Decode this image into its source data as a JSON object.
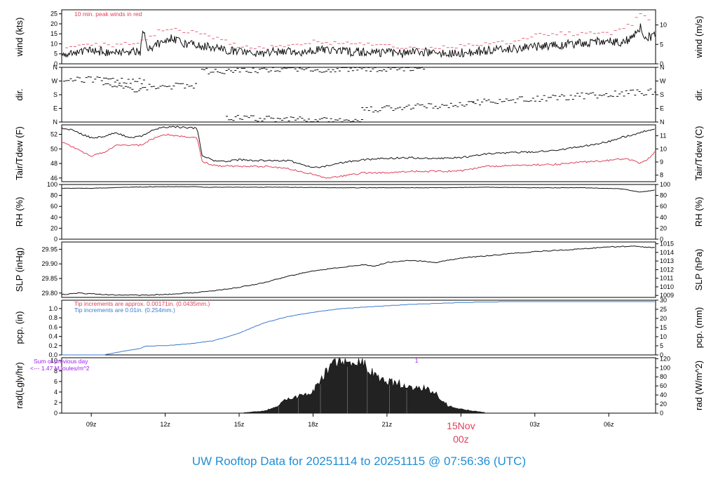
{
  "title": "UW Rooftop Data for 20251114  to  20251115 @ 07:56:36  (UTC)",
  "colors": {
    "black": "#111111",
    "red": "#e0405a",
    "blue": "#3a7ad0",
    "purple": "#a020f0",
    "title": "#1f8fd6"
  },
  "x_axis": {
    "range_hours": [
      7.8,
      31.9
    ],
    "ticks": [
      {
        "h": 9,
        "label": "09z"
      },
      {
        "h": 12,
        "label": "12z"
      },
      {
        "h": 15,
        "label": "15z"
      },
      {
        "h": 18,
        "label": "18z"
      },
      {
        "h": 21,
        "label": "21z"
      },
      {
        "h": 24,
        "label": ""
      },
      {
        "h": 27,
        "label": "03z"
      },
      {
        "h": 30,
        "label": "06z"
      }
    ],
    "date_label": "15Nov",
    "date_hour": "00z"
  },
  "chart_data": [
    {
      "type": "line",
      "id": "wind",
      "ylabel": "wind (kts)",
      "ylabel_right": "wind (m/s)",
      "ylim": [
        0,
        27
      ],
      "ticks_left": [
        "0",
        "5",
        "10",
        "15",
        "20",
        "25"
      ],
      "ticks_right": [
        {
          "v": 0,
          "label": "0"
        },
        {
          "v": 9.72,
          "label": "5"
        },
        {
          "v": 19.44,
          "label": "10"
        }
      ],
      "annotation": "10 min. peak winds in red",
      "series": [
        {
          "color": "black",
          "x": [
            7.8,
            8.5,
            9.0,
            9.5,
            10.0,
            10.5,
            11.0,
            11.1,
            11.3,
            11.8,
            12.3,
            12.8,
            13.5,
            14.5,
            15.5,
            16.5,
            17.5,
            18.5,
            19.5,
            20.5,
            21.5,
            22.5,
            23.5,
            24.5,
            25.5,
            26.5,
            27.5,
            28.5,
            29.5,
            30.5,
            31.0,
            31.3,
            31.5,
            31.9
          ],
          "y": [
            5,
            6,
            7,
            6,
            6,
            6,
            6,
            18,
            8,
            10,
            13,
            10,
            9,
            7,
            5,
            6,
            6,
            7,
            6,
            6,
            5,
            6,
            5,
            6,
            7,
            8,
            9,
            10,
            11,
            11,
            13,
            19,
            13,
            14
          ]
        },
        {
          "color": "red",
          "x": [
            8.0,
            9.0,
            10.0,
            11.0,
            12.0,
            13.0,
            14.0,
            15.0,
            16.0,
            17.0,
            18.0,
            19.0,
            20.0,
            21.0,
            22.0,
            23.0,
            24.0,
            25.0,
            26.0,
            27.0,
            28.0,
            29.0,
            30.0,
            31.0,
            31.3,
            31.7
          ],
          "y": [
            9,
            10,
            9,
            11,
            18,
            16,
            13,
            9,
            8,
            9,
            11,
            10,
            10,
            9,
            8,
            8,
            9,
            10,
            11,
            14,
            15,
            15,
            15,
            20,
            26,
            22
          ]
        }
      ]
    },
    {
      "type": "scatter",
      "id": "dir",
      "ylabel": "dir.",
      "ylabel_right": "dir.",
      "ylim": [
        0,
        360
      ],
      "ticks_left": [
        "N",
        "E",
        "S",
        "W",
        "N"
      ],
      "ticks_right": [
        "N",
        "E",
        "S",
        "W",
        "N"
      ],
      "segments": [
        {
          "x": [
            7.9,
            11.2
          ],
          "y": [
            285,
            270
          ]
        },
        {
          "x": [
            9.5,
            11.0
          ],
          "y": [
            240,
            200
          ]
        },
        {
          "x": [
            11.0,
            13.3
          ],
          "y": [
            230,
            240
          ]
        },
        {
          "x": [
            13.5,
            22.5
          ],
          "y": [
            335,
            355
          ]
        },
        {
          "x": [
            14.5,
            20.0
          ],
          "y": [
            30,
            5
          ]
        },
        {
          "x": [
            20.0,
            24.5
          ],
          "y": [
            80,
            120
          ]
        },
        {
          "x": [
            24.5,
            31.9
          ],
          "y": [
            130,
            200
          ]
        }
      ]
    },
    {
      "type": "line",
      "id": "temp",
      "ylabel": "Tair/Tdew (F)",
      "ylabel_right": "Tair/Tdew (C)",
      "ylim": [
        45.5,
        53.3
      ],
      "ticks_left": [
        "46",
        "48",
        "50",
        "52"
      ],
      "ticks_right": [
        {
          "v": 46.4,
          "label": "8"
        },
        {
          "v": 48.2,
          "label": "9"
        },
        {
          "v": 50.0,
          "label": "10"
        },
        {
          "v": 51.8,
          "label": "11"
        }
      ],
      "series": [
        {
          "name": "Tair",
          "color": "black",
          "x": [
            7.8,
            8.2,
            9.0,
            9.5,
            10.0,
            10.5,
            11.0,
            11.5,
            12.0,
            12.5,
            13.0,
            13.3,
            13.5,
            14.0,
            14.5,
            15.0,
            16.0,
            17.0,
            18.0,
            18.5,
            19.0,
            20.0,
            21.0,
            22.0,
            23.0,
            24.0,
            25.0,
            26.0,
            27.0,
            28.0,
            29.0,
            30.0,
            30.5,
            31.0,
            31.5,
            31.9
          ],
          "y": [
            52.9,
            52.6,
            51.5,
            51.7,
            52.2,
            51.6,
            51.7,
            52.6,
            53.0,
            53.0,
            52.9,
            52.8,
            49.0,
            48.4,
            48.3,
            48.5,
            48.4,
            48.4,
            47.4,
            47.6,
            48.0,
            48.5,
            48.7,
            48.8,
            48.7,
            48.8,
            49.3,
            49.5,
            49.6,
            49.9,
            50.4,
            51.0,
            51.6,
            51.9,
            52.5,
            52.8
          ]
        },
        {
          "name": "Tdew",
          "color": "red",
          "x": [
            7.8,
            8.5,
            9.0,
            9.5,
            10.0,
            10.5,
            11.0,
            11.5,
            12.0,
            12.5,
            13.0,
            13.3,
            13.5,
            14.0,
            15.0,
            16.0,
            17.0,
            18.0,
            18.5,
            19.0,
            20.0,
            21.0,
            22.0,
            23.0,
            24.0,
            25.0,
            26.0,
            27.0,
            28.0,
            29.0,
            30.0,
            30.5,
            31.0,
            31.3,
            31.6,
            31.9
          ],
          "y": [
            51.0,
            49.8,
            49.0,
            49.5,
            50.5,
            50.5,
            50.5,
            51.4,
            52.0,
            51.8,
            51.6,
            51.5,
            48.3,
            47.7,
            47.6,
            47.6,
            47.3,
            46.5,
            46.0,
            46.2,
            46.7,
            46.7,
            46.9,
            46.9,
            47.0,
            47.6,
            47.7,
            47.8,
            47.9,
            48.2,
            48.4,
            48.6,
            48.5,
            48.0,
            48.6,
            49.7
          ]
        }
      ]
    },
    {
      "type": "line",
      "id": "rh",
      "ylabel": "RH (%)",
      "ylabel_right": "RH (%)",
      "ylim": [
        0,
        100
      ],
      "ticks_left": [
        "0",
        "20",
        "40",
        "60",
        "80",
        "100"
      ],
      "ticks_right": [
        "0",
        "20",
        "40",
        "60",
        "80",
        "100"
      ],
      "series": [
        {
          "color": "black",
          "x": [
            7.8,
            9.0,
            10.5,
            12.0,
            13.3,
            13.6,
            15.0,
            17.0,
            19.0,
            21.0,
            23.0,
            25.0,
            27.0,
            29.0,
            30.5,
            31.3,
            31.9
          ],
          "y": [
            93,
            93,
            95,
            96,
            96,
            95,
            95,
            95,
            94,
            94,
            94,
            95,
            94,
            94,
            92,
            86,
            90
          ]
        }
      ]
    },
    {
      "type": "line",
      "id": "slp",
      "ylabel": "SLP (inHg)",
      "ylabel_right": "SLP (hPa)",
      "ylim": [
        29.785,
        29.975
      ],
      "ticks_left": [
        "29.80",
        "29.85",
        "29.90",
        "29.95"
      ],
      "ticks_right": [
        {
          "v": 29.7917,
          "label": "1009"
        },
        {
          "v": 29.8212,
          "label": "1010"
        },
        {
          "v": 29.8507,
          "label": "1011"
        },
        {
          "v": 29.8802,
          "label": "1012"
        },
        {
          "v": 29.9098,
          "label": "1013"
        },
        {
          "v": 29.9393,
          "label": "1014"
        },
        {
          "v": 29.9688,
          "label": "1015"
        }
      ],
      "series": [
        {
          "color": "black",
          "x": [
            7.8,
            8.5,
            9.0,
            10.0,
            11.0,
            12.0,
            13.0,
            14.0,
            15.0,
            16.0,
            17.0,
            18.0,
            19.0,
            20.0,
            20.5,
            21.0,
            22.0,
            23.0,
            23.5,
            24.0,
            25.0,
            26.0,
            27.0,
            28.0,
            29.0,
            30.0,
            31.0,
            31.9
          ],
          "y": [
            29.795,
            29.8,
            29.797,
            29.793,
            29.793,
            29.795,
            29.8,
            29.808,
            29.82,
            29.835,
            29.858,
            29.876,
            29.887,
            29.897,
            29.892,
            29.905,
            29.912,
            29.905,
            29.913,
            29.92,
            29.927,
            29.935,
            29.942,
            29.947,
            29.952,
            29.958,
            29.96,
            29.955
          ]
        }
      ]
    },
    {
      "type": "line",
      "id": "pcp",
      "ylabel": "pcp. (in)",
      "ylabel_right": "pcp. (mm)",
      "ylim": [
        0,
        1.18
      ],
      "ticks_left": [
        "0.0",
        "0.2",
        "0.4",
        "0.6",
        "0.8",
        "1.0"
      ],
      "ticks_right": [
        {
          "v": 0,
          "label": "0"
        },
        {
          "v": 0.1969,
          "label": "5"
        },
        {
          "v": 0.3937,
          "label": "10"
        },
        {
          "v": 0.5906,
          "label": "15"
        },
        {
          "v": 0.7874,
          "label": "20"
        },
        {
          "v": 0.9843,
          "label": "25"
        },
        {
          "v": 1.1811,
          "label": "30"
        }
      ],
      "annotations": [
        {
          "text": "Tip increments are approx. 0.00171in. (0.0435mm.)",
          "color": "red"
        },
        {
          "text": "Tip increments are 0.01in. (0.254mm.)",
          "color": "blue"
        }
      ],
      "series": [
        {
          "color": "blue",
          "x": [
            7.8,
            9.5,
            10.0,
            10.5,
            11.0,
            11.2,
            12.0,
            13.0,
            14.0,
            15.0,
            16.0,
            17.0,
            18.0,
            19.0,
            20.0,
            21.0,
            22.0,
            23.0,
            24.0,
            25.0,
            26.0,
            31.9
          ],
          "y": [
            0,
            0,
            0.05,
            0.1,
            0.14,
            0.19,
            0.2,
            0.24,
            0.31,
            0.47,
            0.69,
            0.83,
            0.92,
            0.99,
            1.03,
            1.06,
            1.09,
            1.11,
            1.13,
            1.14,
            1.15,
            1.15
          ]
        }
      ]
    },
    {
      "type": "area",
      "id": "rad",
      "ylabel": "rad(Lgly/hr)",
      "ylabel_right": "rad (W/m^2)",
      "ylim": [
        0,
        10.5
      ],
      "ticks_left": [
        "0",
        "2",
        "4",
        "6",
        "8",
        "10"
      ],
      "ticks_right": [
        {
          "v": 0,
          "label": "0"
        },
        {
          "v": 1.72,
          "label": "20"
        },
        {
          "v": 3.44,
          "label": "40"
        },
        {
          "v": 5.16,
          "label": "60"
        },
        {
          "v": 6.88,
          "label": "80"
        },
        {
          "v": 8.6,
          "label": "100"
        },
        {
          "v": 10.32,
          "label": "120"
        }
      ],
      "annotations": [
        {
          "text": "Sum of previous day",
          "color": "purple"
        },
        {
          "text": "<--- 1.47 MJoules/m^2",
          "color": "purple"
        },
        {
          "text": "1",
          "color": "purple"
        }
      ],
      "series": [
        {
          "color": "black",
          "x": [
            15.2,
            16.0,
            16.5,
            17.0,
            17.5,
            18.0,
            18.5,
            19.0,
            19.3,
            19.6,
            20.0,
            20.4,
            20.8,
            21.2,
            21.6,
            22.0,
            22.5,
            23.0,
            23.5,
            24.0,
            24.5,
            25.0
          ],
          "y": [
            0.1,
            0.4,
            1.2,
            2.8,
            3.2,
            4.0,
            7.5,
            9.8,
            10.3,
            8.6,
            9.8,
            7.5,
            6.5,
            5.8,
            5.5,
            4.4,
            4.8,
            3.6,
            1.3,
            0.8,
            0.4,
            0.1
          ]
        }
      ]
    }
  ]
}
